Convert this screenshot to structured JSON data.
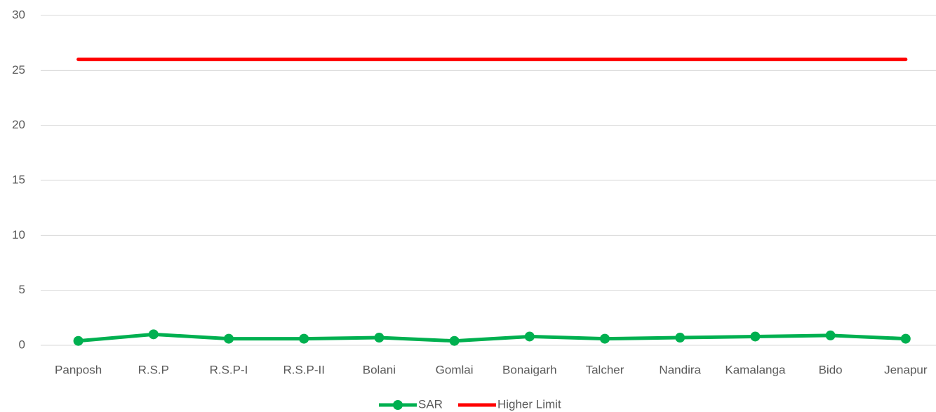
{
  "chart_data": {
    "type": "line",
    "categories": [
      "Panposh",
      "R.S.P",
      "R.S.P-I",
      "R.S.P-II",
      "Bolani",
      "Gomlai",
      "Bonaigarh",
      "Talcher",
      "Nandira",
      "Kamalanga",
      "Bido",
      "Jenapur"
    ],
    "series": [
      {
        "name": "SAR",
        "color": "#00b050",
        "markers": true,
        "values": [
          0.4,
          1.0,
          0.6,
          0.6,
          0.7,
          0.4,
          0.8,
          0.6,
          0.7,
          0.8,
          0.9,
          0.6
        ]
      },
      {
        "name": "Higher Limit",
        "color": "#ff0000",
        "markers": false,
        "values": [
          26,
          26,
          26,
          26,
          26,
          26,
          26,
          26,
          26,
          26,
          26,
          26
        ]
      }
    ],
    "ylim": [
      0,
      30
    ],
    "yticks": [
      0,
      5,
      10,
      15,
      20,
      25,
      30
    ],
    "grid": true,
    "legend": "bottom"
  }
}
